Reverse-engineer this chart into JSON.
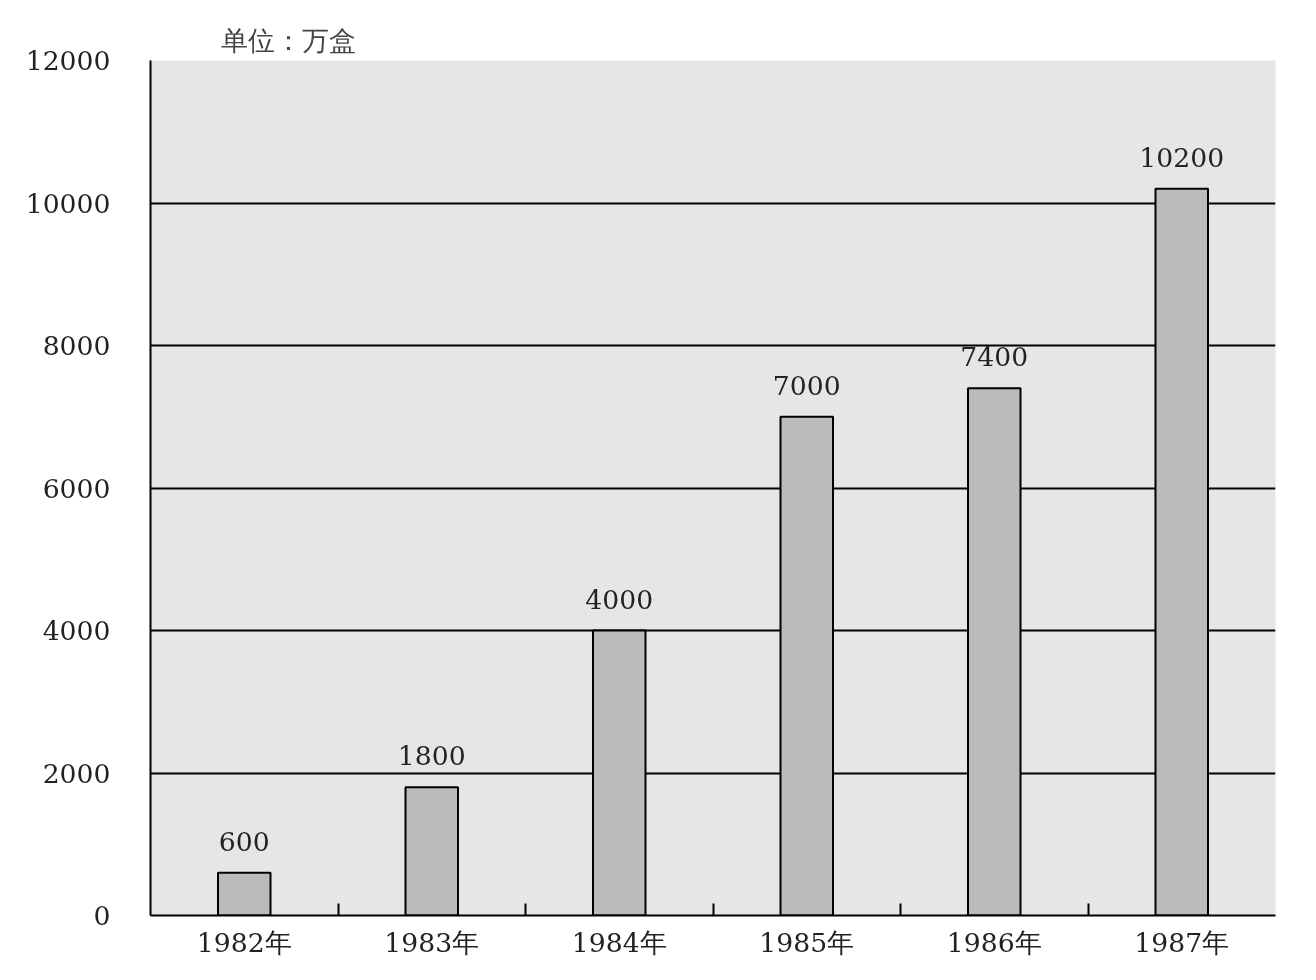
{
  "chart_data": {
    "type": "bar",
    "ylabel": "单位：万盒",
    "categories": [
      "1982年",
      "1983年",
      "1984年",
      "1985年",
      "1986年",
      "1987年"
    ],
    "values": [
      600,
      1800,
      4000,
      7000,
      7400,
      10200
    ],
    "color": "#bcbbbb",
    "ylim": [
      0,
      12000
    ],
    "yticks": [
      0,
      2000,
      4000,
      6000,
      8000,
      10000,
      12000
    ],
    "grid": "y",
    "data_labels": true
  }
}
